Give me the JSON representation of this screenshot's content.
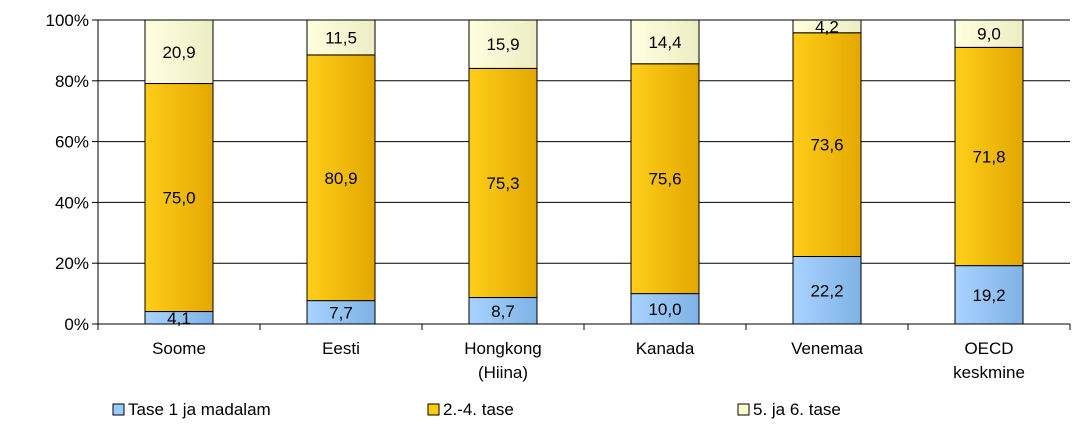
{
  "chart_data": {
    "type": "bar",
    "stacked": true,
    "percent_stacked": true,
    "categories": [
      [
        "Soome"
      ],
      [
        "Eesti"
      ],
      [
        "Hongkong",
        "(Hiina)"
      ],
      [
        "Kanada"
      ],
      [
        "Venemaa"
      ],
      [
        "OECD",
        "keskmine"
      ]
    ],
    "series": [
      {
        "name": "Tase 1 ja madalam",
        "values": [
          4.1,
          7.7,
          8.7,
          10.0,
          22.2,
          19.2
        ],
        "labels": [
          "4,1",
          "7,7",
          "8,7",
          "10,0",
          "22,2",
          "19,2"
        ],
        "color": "#99CCFF"
      },
      {
        "name": "2.-4. tase",
        "values": [
          75.0,
          80.9,
          75.3,
          75.6,
          73.6,
          71.8
        ],
        "labels": [
          "75,0",
          "80,9",
          "75,3",
          "75,6",
          "73,6",
          "71,8"
        ],
        "color": "#FFCC00"
      },
      {
        "name": "5. ja 6. tase",
        "values": [
          20.9,
          11.5,
          15.9,
          14.4,
          4.2,
          9.0
        ],
        "labels": [
          "20,9",
          "11,5",
          "15,9",
          "14,4",
          "4,2",
          "9,0"
        ],
        "color": "#FFFFCC"
      }
    ],
    "ylim": [
      0,
      100
    ],
    "yticks": [
      "0%",
      "20%",
      "40%",
      "60%",
      "80%",
      "100%"
    ],
    "grid": true,
    "legend_position": "bottom-left"
  }
}
